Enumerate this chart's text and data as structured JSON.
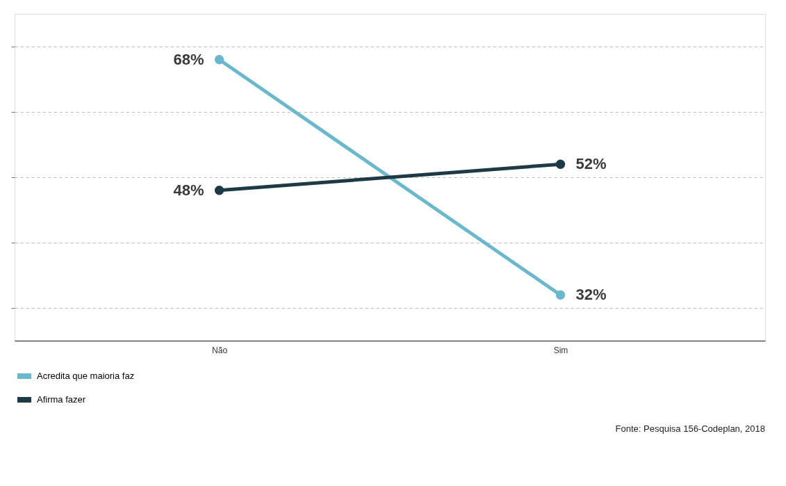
{
  "chart_data": {
    "type": "line",
    "categories": [
      "Não",
      "Sim"
    ],
    "series": [
      {
        "name": "Acredita que maioria faz",
        "color": "#6bb8cd",
        "values": [
          68,
          32
        ],
        "value_labels": [
          "68%",
          "32%"
        ]
      },
      {
        "name": "Afirma fazer",
        "color": "#1e3a47",
        "values": [
          48,
          52
        ],
        "value_labels": [
          "48%",
          "52%"
        ]
      }
    ],
    "tick_labels": "x",
    "grid": "y",
    "legend": "bottom",
    "marker": "circle",
    "line_style": "solid",
    "annotations": [
      "Fonte: Pesquisa 156-Codeplan, 2018"
    ]
  }
}
